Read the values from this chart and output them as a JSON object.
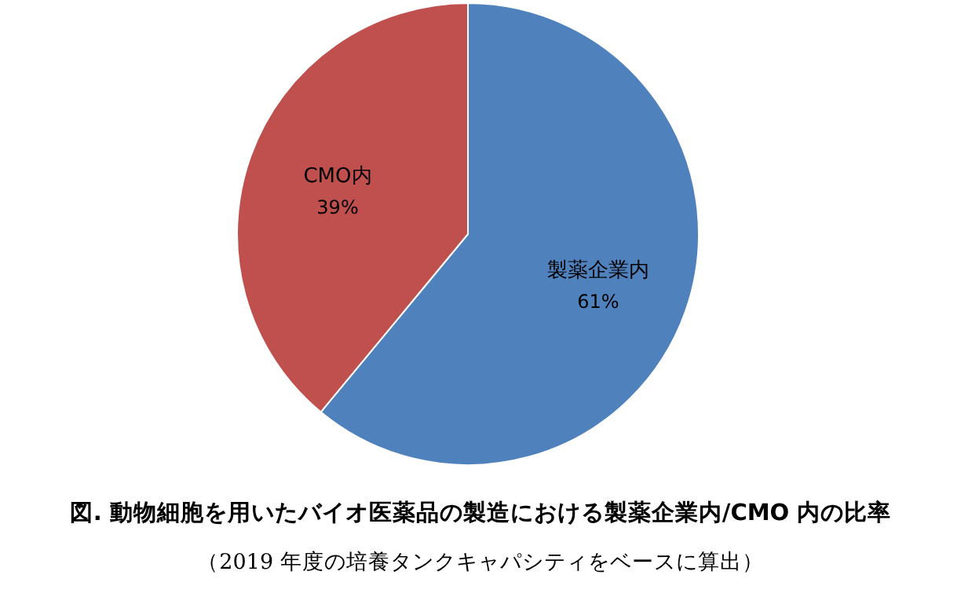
{
  "chart_data": {
    "type": "pie",
    "title": "図. 動物細胞を用いたバイオ医薬品の製造における製薬企業内/CMO 内の比率",
    "annotations": [
      "（2019 年度の培養タンクキャパシティをベースに算出）"
    ],
    "categories": [
      "製薬企業内",
      "CMO内"
    ],
    "values": [
      61,
      39
    ],
    "colors": [
      "#4f81bd",
      "#c0504d"
    ],
    "value_labels": [
      "61%",
      "39%"
    ],
    "legend": false
  }
}
